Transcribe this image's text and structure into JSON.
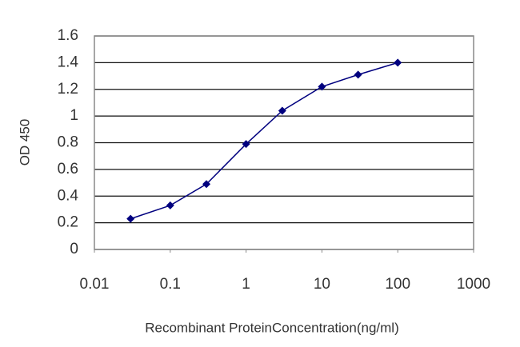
{
  "chart_data": {
    "type": "line",
    "x_label": "Recombinant ProteinConcentration(ng/ml)",
    "y_label": "OD 450",
    "x": [
      0.03,
      0.1,
      0.3,
      1,
      3,
      10,
      30,
      100
    ],
    "values": [
      0.23,
      0.33,
      0.49,
      0.79,
      1.04,
      1.22,
      1.31,
      1.4
    ],
    "color": "#00007f",
    "x_log": true,
    "xlim": [
      0.01,
      1000
    ],
    "xticks": [
      0.01,
      0.1,
      1,
      10,
      100,
      1000
    ],
    "ylim": [
      0,
      1.6
    ],
    "yticks": [
      0,
      0.2,
      0.4,
      0.6,
      0.8,
      1,
      1.2,
      1.4,
      1.6
    ],
    "grid": true
  }
}
